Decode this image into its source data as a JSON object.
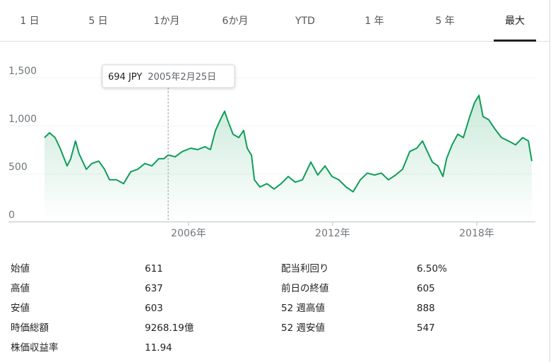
{
  "tabs": [
    "1 日",
    "5 日",
    "1か月",
    "6か月",
    "YTD",
    "1 年",
    "5 年",
    "最大"
  ],
  "selected_tab": 7,
  "chart_data": {
    "type": "line",
    "series": [
      {
        "color": "#0f9d58",
        "x": [
          2000.0,
          2000.21,
          2000.44,
          2000.65,
          2000.94,
          2001.09,
          2001.29,
          2001.44,
          2001.74,
          2001.97,
          2002.26,
          2002.5,
          2002.71,
          2003.0,
          2003.29,
          2003.59,
          2003.88,
          2004.18,
          2004.47,
          2004.76,
          2004.97,
          2005.15,
          2005.44,
          2005.74,
          2006.09,
          2006.38,
          2006.68,
          2006.91,
          2007.12,
          2007.32,
          2007.5,
          2007.62,
          2007.85,
          2008.09,
          2008.29,
          2008.44,
          2008.62,
          2008.74,
          2008.97,
          2009.26,
          2009.56,
          2009.85,
          2010.15,
          2010.44,
          2010.74,
          2011.09,
          2011.38,
          2011.68,
          2011.97,
          2012.26,
          2012.56,
          2012.85,
          2013.15,
          2013.44,
          2013.74,
          2014.03,
          2014.32,
          2014.62,
          2014.91,
          2015.21,
          2015.5,
          2015.74,
          2015.94,
          2016.15,
          2016.38,
          2016.59,
          2016.74,
          2016.97,
          2017.21,
          2017.44,
          2017.71,
          2017.91,
          2018.09,
          2018.26,
          2018.5,
          2018.74,
          2019.03,
          2019.32,
          2019.62,
          2019.91,
          2020.15,
          2020.29
        ],
        "values": [
          875,
          925,
          875,
          765,
          580,
          655,
          840,
          705,
          545,
          605,
          630,
          545,
          435,
          435,
          395,
          520,
          545,
          605,
          580,
          655,
          655,
          694,
          675,
          730,
          765,
          750,
          780,
          750,
          950,
          1060,
          1150,
          1060,
          910,
          875,
          950,
          765,
          690,
          435,
          360,
          395,
          340,
          395,
          470,
          410,
          435,
          620,
          485,
          580,
          470,
          435,
          360,
          310,
          435,
          505,
          485,
          505,
          435,
          485,
          545,
          730,
          765,
          840,
          730,
          620,
          580,
          470,
          655,
          800,
          910,
          875,
          1095,
          1240,
          1315,
          1095,
          1060,
          970,
          875,
          840,
          800,
          875,
          840,
          630
        ]
      }
    ],
    "xlim": [
      2000,
      2020.4
    ],
    "ylim": [
      0,
      1600
    ],
    "yticks": [
      0,
      500,
      {
        "value": 1000,
        "label": "1,000"
      },
      {
        "value": 1500,
        "label": "1,500"
      }
    ],
    "xticks": [
      {
        "value": 2006,
        "label": "2006年"
      },
      {
        "value": 2012,
        "label": "2012年"
      },
      {
        "value": 2018,
        "label": "2018年"
      }
    ],
    "grid": true,
    "tooltip": {
      "x": 2005.15,
      "price": "694 JPY",
      "date": "2005年2月25日"
    }
  },
  "stats_left": [
    {
      "label": "始値",
      "value": "611"
    },
    {
      "label": "高値",
      "value": "637"
    },
    {
      "label": "安値",
      "value": "603"
    },
    {
      "label": "時価総額",
      "value": "9268.19億"
    },
    {
      "label": "株価収益率",
      "value": "11.94"
    }
  ],
  "stats_right": [
    {
      "label": "配当利回り",
      "value": "6.50%"
    },
    {
      "label": "前日の終値",
      "value": "605"
    },
    {
      "label": "52 週高値",
      "value": "888"
    },
    {
      "label": "52 週安値",
      "value": "547"
    }
  ]
}
